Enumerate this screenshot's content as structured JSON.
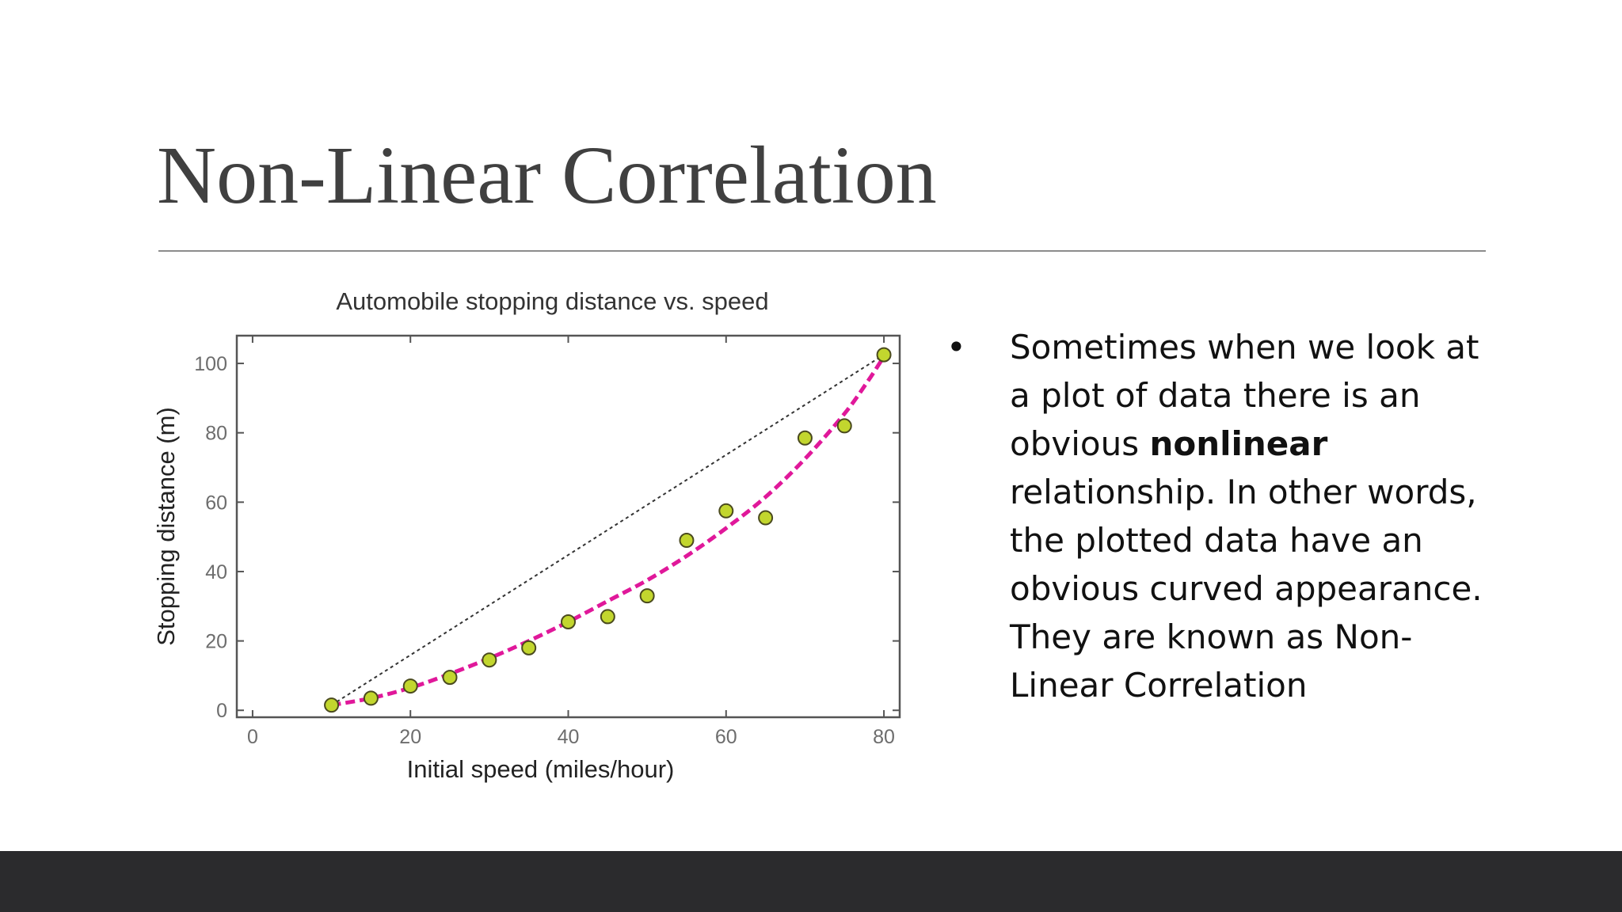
{
  "slide": {
    "title": "Non-Linear Correlation",
    "bullet": {
      "marker": "•",
      "before": "Sometimes when we look at a plot of data there is an obvious ",
      "bold": "nonlinear",
      "after": " relationship. In other words, the plotted data have an obvious curved appearance. They are known as Non-Linear Correlation"
    }
  },
  "chart_data": {
    "type": "scatter",
    "title": "Automobile stopping distance vs. speed",
    "xlabel": "Initial speed (miles/hour)",
    "ylabel": "Stopping distance (m)",
    "xlim": [
      -2,
      82
    ],
    "ylim": [
      -2,
      108
    ],
    "xticks": [
      0,
      20,
      40,
      60,
      80
    ],
    "yticks": [
      0,
      20,
      40,
      60,
      80,
      100
    ],
    "grid": false,
    "points": {
      "x": [
        10,
        15,
        20,
        25,
        30,
        35,
        40,
        45,
        50,
        55,
        60,
        65,
        70,
        75,
        80
      ],
      "y": [
        1.5,
        3.5,
        7,
        9.5,
        14.5,
        18,
        25.5,
        27,
        33,
        49,
        57.5,
        55.5,
        78.5,
        82,
        102.5
      ]
    },
    "curve_fit": {
      "style": "dashed",
      "x": [
        10,
        15,
        20,
        25,
        30,
        35,
        40,
        45,
        50,
        55,
        60,
        65,
        70,
        75,
        78,
        80
      ],
      "y": [
        1.5,
        3.5,
        6.5,
        10.5,
        15,
        20,
        25.5,
        31.5,
        37.5,
        44.5,
        52.5,
        61.5,
        72.5,
        85.5,
        95,
        102
      ]
    },
    "reference_line": {
      "style": "dotted",
      "x": [
        10,
        80
      ],
      "y": [
        1.5,
        102.5
      ]
    },
    "colors": {
      "points_fill": "#c2d62e",
      "points_edge": "#4a4a1e",
      "curve": "#e0189a",
      "reference_line": "#333333",
      "axes": "#555555",
      "ticks_text": "#6d6d6d"
    }
  },
  "colors": {
    "title": "#404040",
    "rule": "#8c8c8c",
    "footer": "#2b2b2d",
    "body_text": "#111111"
  }
}
